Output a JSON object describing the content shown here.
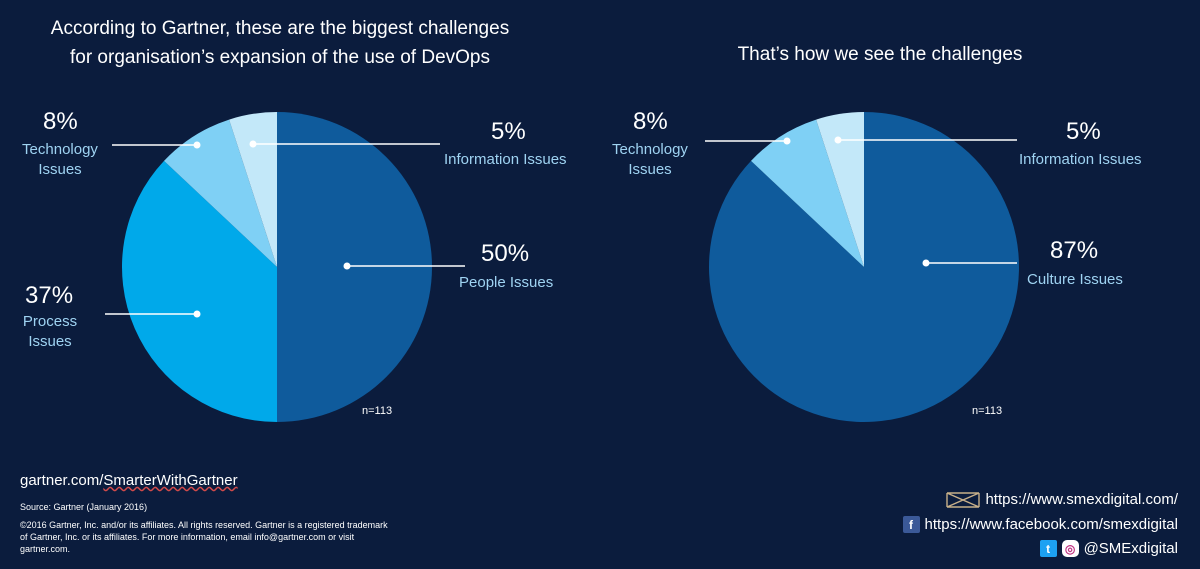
{
  "chart_data": [
    {
      "type": "pie",
      "title": "According to Gartner, these are the biggest challenges for organisation’s expansion of the use of DevOps",
      "slices": [
        {
          "label": "People Issues",
          "value": 50,
          "display": "50%",
          "color": "#0f5b9c"
        },
        {
          "label": "Process Issues",
          "value": 37,
          "display": "37%",
          "color": "#00a9ea"
        },
        {
          "label": "Technology Issues",
          "value": 8,
          "display": "8%",
          "color": "#7fd0f5"
        },
        {
          "label": "Information Issues",
          "value": 5,
          "display": "5%",
          "color": "#c3e8f9"
        }
      ],
      "note": "n=113"
    },
    {
      "type": "pie",
      "title": "That’s how we see the challenges",
      "slices": [
        {
          "label": "Culture Issues",
          "value": 87,
          "display": "87%",
          "color": "#0f5b9c"
        },
        {
          "label": "Technology Issues",
          "value": 8,
          "display": "8%",
          "color": "#7fd0f5"
        },
        {
          "label": "Information Issues",
          "value": 5,
          "display": "5%",
          "color": "#c3e8f9"
        }
      ],
      "note": "n=113"
    }
  ],
  "left_labels": {
    "tech_pct": "8%",
    "tech_a": "Technology",
    "tech_b": "Issues",
    "info_pct": "5%",
    "info": "Information Issues",
    "people_pct": "50%",
    "people": "People Issues",
    "process_pct": "37%",
    "process_a": "Process",
    "process_b": "Issues"
  },
  "right_labels": {
    "tech_pct": "8%",
    "tech_a": "Technology",
    "tech_b": "Issues",
    "info_pct": "5%",
    "info": "Information Issues",
    "culture_pct": "87%",
    "culture": "Culture Issues"
  },
  "footer": {
    "url_prefix": "gartner.com/",
    "url_suffix": "SmarterWithGartner",
    "source": "Source: Gartner (January 2016)",
    "copyright_1": "©2016 Gartner, Inc. and/or its affiliates. All rights reserved. Gartner is a registered trademark",
    "copyright_2": "of Gartner, Inc. or its affiliates. For more information, email info@gartner.com or visit",
    "copyright_3": "gartner.com."
  },
  "social": {
    "website": "https://www.smexdigital.com/",
    "facebook": "https://www.facebook.com/smexdigital",
    "handle": "@SMExdigital",
    "fb_glyph": "f",
    "tw_glyph": "t",
    "ig_glyph": "◎"
  },
  "icons": [
    "smex-logo-icon",
    "facebook-icon",
    "twitter-icon",
    "instagram-icon"
  ]
}
